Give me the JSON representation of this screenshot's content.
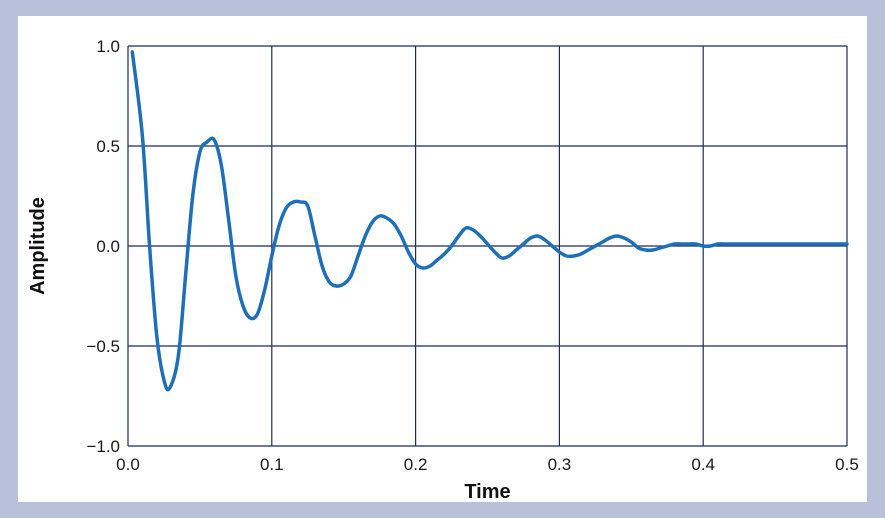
{
  "chart_data": {
    "type": "line",
    "title": "",
    "xlabel": "Time",
    "ylabel": "Amplitude",
    "xlim": [
      0,
      0.5
    ],
    "ylim": [
      -1.0,
      1.0
    ],
    "grid": true,
    "x_ticks": [
      0.0,
      0.1,
      0.2,
      0.3,
      0.4,
      0.5
    ],
    "x_tick_labels": [
      "0.0",
      "0.1",
      "0.2",
      "0.3",
      "0.4",
      "0.5"
    ],
    "y_ticks": [
      1.0,
      0.5,
      0.0,
      -0.5,
      -1.0
    ],
    "y_tick_labels": [
      "1.0",
      "0.5",
      "0.0",
      "−0.5",
      "−1.0"
    ],
    "colors": {
      "line": "#1f6fb8",
      "grid": "#1d2b5c",
      "frame": "#b9c1da",
      "plot_background": "#ffffff"
    },
    "series": [
      {
        "x": [
          0.003,
          0.01,
          0.015,
          0.02,
          0.025,
          0.029,
          0.035,
          0.04,
          0.045,
          0.05,
          0.055,
          0.06,
          0.065,
          0.07,
          0.075,
          0.08,
          0.085,
          0.09,
          0.095,
          0.1,
          0.105,
          0.11,
          0.115,
          0.12,
          0.125,
          0.13,
          0.135,
          0.14,
          0.145,
          0.15,
          0.155,
          0.16,
          0.165,
          0.17,
          0.175,
          0.18,
          0.185,
          0.19,
          0.195,
          0.2,
          0.205,
          0.21,
          0.215,
          0.22,
          0.225,
          0.23,
          0.235,
          0.24,
          0.245,
          0.25,
          0.255,
          0.26,
          0.265,
          0.27,
          0.275,
          0.28,
          0.285,
          0.29,
          0.295,
          0.3,
          0.305,
          0.31,
          0.315,
          0.32,
          0.325,
          0.33,
          0.335,
          0.34,
          0.345,
          0.35,
          0.355,
          0.36,
          0.365,
          0.37,
          0.375,
          0.38,
          0.385,
          0.39,
          0.395,
          0.4,
          0.405,
          0.41,
          0.415,
          0.42,
          0.425,
          0.43,
          0.44,
          0.45,
          0.46,
          0.47,
          0.48,
          0.49,
          0.5
        ],
        "y": [
          0.97,
          0.55,
          0.0,
          -0.45,
          -0.67,
          -0.71,
          -0.55,
          -0.15,
          0.25,
          0.47,
          0.52,
          0.53,
          0.4,
          0.13,
          -0.15,
          -0.3,
          -0.36,
          -0.34,
          -0.22,
          -0.05,
          0.1,
          0.19,
          0.22,
          0.22,
          0.2,
          0.05,
          -0.1,
          -0.18,
          -0.2,
          -0.19,
          -0.15,
          -0.05,
          0.05,
          0.12,
          0.15,
          0.14,
          0.11,
          0.05,
          -0.03,
          -0.09,
          -0.11,
          -0.1,
          -0.07,
          -0.04,
          0.0,
          0.05,
          0.09,
          0.08,
          0.05,
          0.01,
          -0.03,
          -0.06,
          -0.05,
          -0.02,
          0.01,
          0.04,
          0.05,
          0.03,
          0.0,
          -0.03,
          -0.05,
          -0.05,
          -0.04,
          -0.02,
          0.0,
          0.02,
          0.04,
          0.05,
          0.04,
          0.02,
          -0.01,
          -0.02,
          -0.02,
          -0.01,
          0.0,
          0.01,
          0.01,
          0.01,
          0.01,
          0.0,
          0.0,
          0.01,
          0.01,
          0.01,
          0.01,
          0.01,
          0.01,
          0.01,
          0.01,
          0.01,
          0.01,
          0.01,
          0.01
        ]
      }
    ]
  }
}
